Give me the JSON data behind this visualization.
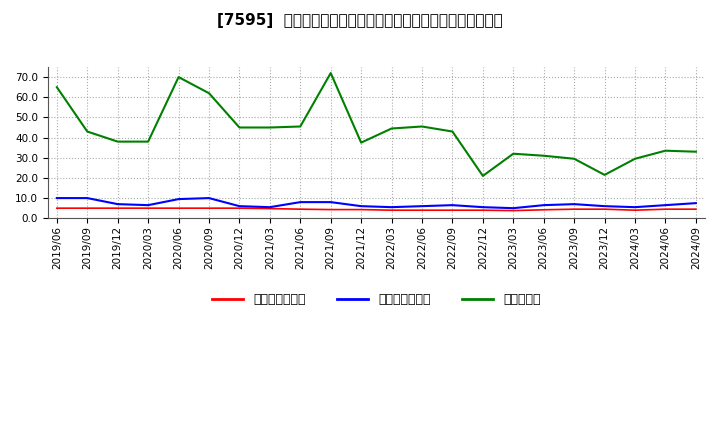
{
  "title": "[7595]  売上債権回転率、買入債務回転率、在庫回転率の推移",
  "xlabel_dates": [
    "2019/06",
    "2019/09",
    "2019/12",
    "2020/03",
    "2020/06",
    "2020/09",
    "2020/12",
    "2021/03",
    "2021/06",
    "2021/09",
    "2021/12",
    "2022/03",
    "2022/06",
    "2022/09",
    "2022/12",
    "2023/03",
    "2023/06",
    "2023/09",
    "2023/12",
    "2024/03",
    "2024/06",
    "2024/09"
  ],
  "receivables_turnover": [
    5.0,
    5.0,
    5.0,
    5.0,
    5.0,
    5.0,
    5.0,
    4.8,
    4.5,
    4.3,
    4.3,
    4.0,
    4.0,
    4.0,
    4.0,
    3.8,
    4.2,
    4.5,
    4.5,
    4.0,
    4.5,
    4.5
  ],
  "payables_turnover": [
    10.0,
    10.0,
    7.0,
    6.5,
    9.5,
    10.0,
    6.0,
    5.5,
    8.0,
    8.0,
    6.0,
    5.5,
    6.0,
    6.5,
    5.5,
    5.0,
    6.5,
    7.0,
    6.0,
    5.5,
    6.5,
    7.5
  ],
  "inventory_turnover": [
    65.0,
    43.0,
    38.0,
    38.0,
    70.0,
    62.0,
    45.0,
    45.0,
    45.5,
    72.0,
    37.5,
    44.5,
    45.5,
    43.0,
    21.0,
    32.0,
    31.0,
    29.5,
    21.5,
    29.5,
    33.5,
    33.0
  ],
  "receivables_color": "#ff0000",
  "payables_color": "#0000ff",
  "inventory_color": "#008000",
  "bg_color": "#ffffff",
  "plot_bg_color": "#ffffff",
  "grid_color": "#aaaaaa",
  "ylim": [
    0.0,
    75.0
  ],
  "yticks": [
    0.0,
    10.0,
    20.0,
    30.0,
    40.0,
    50.0,
    60.0,
    70.0
  ],
  "legend_labels": [
    "売上債権回転率",
    "買入債務回転率",
    "在庫回転率"
  ],
  "title_fontsize": 11,
  "tick_fontsize": 7.5,
  "legend_fontsize": 9
}
